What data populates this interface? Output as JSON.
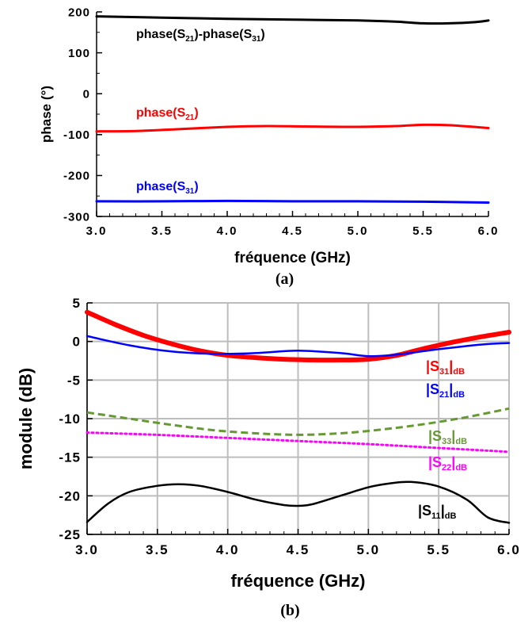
{
  "chart_data": [
    {
      "id": "a",
      "type": "line",
      "caption": "(a)",
      "xlabel": "fréquence (GHz)",
      "ylabel": "phase (°)",
      "xlim": [
        3.0,
        6.0
      ],
      "ylim": [
        -300,
        200
      ],
      "xticks": [
        "3.0",
        "3.5",
        "4.0",
        "4.5",
        "5.0",
        "5.5",
        "6.0"
      ],
      "yticks": [
        "200",
        "100",
        "0",
        "-100",
        "-200",
        "-300"
      ],
      "grid": false,
      "series": [
        {
          "name": "phase(S21)-phase(S31)",
          "label_parts": [
            "phase(S",
            "21",
            ")-phase(S",
            "31",
            ")"
          ],
          "color": "#000000",
          "x": [
            3.0,
            3.5,
            4.0,
            4.5,
            5.0,
            5.3,
            5.5,
            5.7,
            5.9,
            6.0
          ],
          "y": [
            189,
            186,
            183,
            181,
            179,
            176,
            172,
            172,
            175,
            179
          ]
        },
        {
          "name": "phase(S21)",
          "label_parts": [
            "phase(S",
            "21",
            ")"
          ],
          "color": "#ff0000",
          "x": [
            3.0,
            3.3,
            3.6,
            4.0,
            4.3,
            4.6,
            5.0,
            5.3,
            5.5,
            5.7,
            6.0
          ],
          "y": [
            -92,
            -91,
            -87,
            -81,
            -79,
            -80,
            -81,
            -79,
            -76,
            -77,
            -84
          ]
        },
        {
          "name": "phase(S31)",
          "label_parts": [
            "phase(S",
            "31",
            ")"
          ],
          "color": "#0000ff",
          "x": [
            3.0,
            3.5,
            4.0,
            4.5,
            5.0,
            5.5,
            6.0
          ],
          "y": [
            -263,
            -263,
            -262,
            -263,
            -263,
            -264,
            -266
          ]
        }
      ]
    },
    {
      "id": "b",
      "type": "line",
      "caption": "(b)",
      "xlabel": "fréquence (GHz)",
      "ylabel": "module (dB)",
      "xlim": [
        3.0,
        6.0
      ],
      "ylim": [
        -25,
        5
      ],
      "xticks": [
        "3.0",
        "3.5",
        "4.0",
        "4.5",
        "5.0",
        "5.5",
        "6.0"
      ],
      "yticks": [
        "5",
        "0",
        "-5",
        "-10",
        "-15",
        "-20",
        "-25"
      ],
      "grid": true,
      "series": [
        {
          "name": "|S31|dB",
          "label_parts": [
            "|S",
            "31",
            "|",
            "dB"
          ],
          "color": "#ff0000",
          "style": "thick",
          "x": [
            3.0,
            3.2,
            3.4,
            3.6,
            3.8,
            4.0,
            4.2,
            4.4,
            4.6,
            4.8,
            5.0,
            5.2,
            5.4,
            5.6,
            5.8,
            6.0
          ],
          "y": [
            3.8,
            2.2,
            0.8,
            -0.3,
            -1.2,
            -1.8,
            -2.1,
            -2.3,
            -2.4,
            -2.4,
            -2.3,
            -1.8,
            -0.9,
            -0.1,
            0.6,
            1.2
          ]
        },
        {
          "name": "|S21|dB",
          "label_parts": [
            "|S",
            "21",
            "|",
            "dB"
          ],
          "color": "#0000ff",
          "style": "solid",
          "x": [
            3.0,
            3.3,
            3.6,
            3.9,
            4.2,
            4.5,
            4.8,
            5.0,
            5.2,
            5.5,
            5.8,
            6.0
          ],
          "y": [
            0.7,
            -0.5,
            -1.3,
            -1.6,
            -1.5,
            -1.2,
            -1.5,
            -1.9,
            -1.7,
            -1.0,
            -0.4,
            -0.2
          ]
        },
        {
          "name": "|S33|dB",
          "label_parts": [
            "|S",
            "33",
            "|",
            "dB"
          ],
          "color": "#669933",
          "style": "dashed",
          "x": [
            3.0,
            3.3,
            3.6,
            3.9,
            4.2,
            4.5,
            4.8,
            5.1,
            5.4,
            5.7,
            6.0
          ],
          "y": [
            -9.2,
            -10.0,
            -10.8,
            -11.5,
            -11.9,
            -12.1,
            -11.9,
            -11.4,
            -10.7,
            -9.8,
            -8.7
          ]
        },
        {
          "name": "|S22|dB",
          "label_parts": [
            "|S",
            "22",
            "|",
            "dB"
          ],
          "color": "#ff00ff",
          "style": "dotted",
          "x": [
            3.0,
            3.5,
            4.0,
            4.5,
            5.0,
            5.5,
            6.0
          ],
          "y": [
            -11.8,
            -12.1,
            -12.5,
            -12.9,
            -13.3,
            -13.8,
            -14.3
          ]
        },
        {
          "name": "|S11|dB",
          "label_parts": [
            "|S",
            "11",
            "|",
            "dB"
          ],
          "color": "#000000",
          "style": "solid",
          "x": [
            3.0,
            3.15,
            3.3,
            3.5,
            3.65,
            3.8,
            4.0,
            4.2,
            4.4,
            4.5,
            4.6,
            4.8,
            5.0,
            5.15,
            5.3,
            5.5,
            5.7,
            5.85,
            6.0
          ],
          "y": [
            -23.4,
            -21.0,
            -19.5,
            -18.7,
            -18.5,
            -18.7,
            -19.5,
            -20.5,
            -21.2,
            -21.3,
            -21.1,
            -20.0,
            -18.9,
            -18.4,
            -18.2,
            -18.8,
            -20.5,
            -22.8,
            -23.5
          ]
        }
      ]
    }
  ]
}
